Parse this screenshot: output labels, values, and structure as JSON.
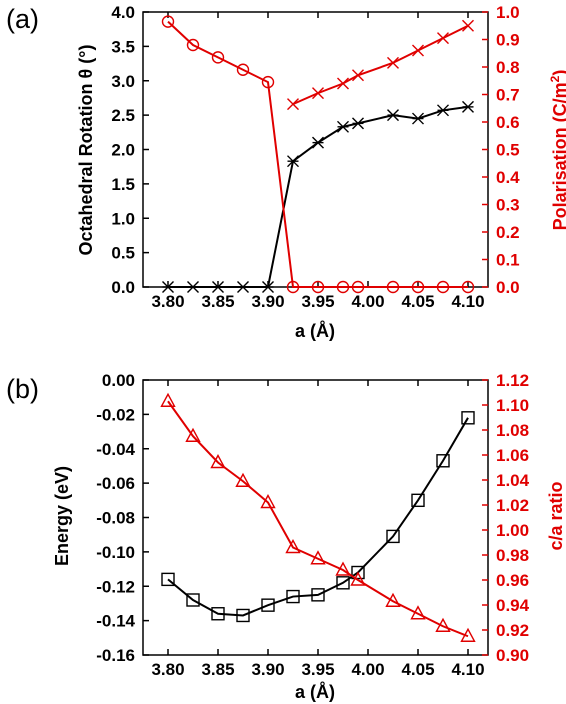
{
  "chart_data": [
    {
      "panel_label": "(a)",
      "type": "line",
      "xlabel": "a (Å)",
      "ylabel_left": "Octahedral Rotation θ (°)",
      "ylabel_right_prefix": "Polarisation (C/m",
      "ylabel_right_sup": "2",
      "ylabel_right_suffix": ")",
      "xlim": [
        3.775,
        4.12
      ],
      "ylim_left": [
        0,
        4.0
      ],
      "ylim_right": [
        0,
        1.0
      ],
      "x_ticks": [
        "3.80",
        "3.85",
        "3.90",
        "3.95",
        "4.00",
        "4.05",
        "4.10"
      ],
      "y_ticks_left": [
        "0.0",
        "0.5",
        "1.0",
        "1.5",
        "2.0",
        "2.5",
        "3.0",
        "3.5",
        "4.0"
      ],
      "y_ticks_right": [
        "0.0",
        "0.1",
        "0.2",
        "0.3",
        "0.4",
        "0.5",
        "0.6",
        "0.7",
        "0.8",
        "0.9",
        "1.0"
      ],
      "series": [
        {
          "axis": "left",
          "color": "#000000",
          "marker": "asterisk",
          "x": [
            3.8,
            3.825,
            3.85,
            3.875,
            3.9,
            3.925,
            3.95,
            3.975,
            3.99,
            4.025,
            4.05,
            4.075,
            4.1
          ],
          "y": [
            0,
            0,
            0,
            0,
            0,
            1.83,
            2.1,
            2.33,
            2.38,
            2.5,
            2.45,
            2.57,
            2.62
          ]
        },
        {
          "axis": "right",
          "color": "#e00000",
          "marker": "x",
          "x": [
            3.925,
            3.95,
            3.975,
            3.99,
            4.025,
            4.05,
            4.075,
            4.1
          ],
          "y": [
            0.665,
            0.705,
            0.74,
            0.77,
            0.815,
            0.86,
            0.905,
            0.95
          ]
        },
        {
          "axis": "right",
          "color": "#e00000",
          "marker": "circle",
          "x": [
            3.8,
            3.825,
            3.85,
            3.875,
            3.9,
            3.925,
            3.95,
            3.975,
            3.99,
            4.025,
            4.05,
            4.075,
            4.1
          ],
          "y": [
            0.965,
            0.88,
            0.835,
            0.79,
            0.745,
            0,
            0,
            0,
            0,
            0,
            0,
            0,
            0
          ]
        }
      ]
    },
    {
      "panel_label": "(b)",
      "type": "line",
      "xlabel": "a (Å)",
      "ylabel_left": "Energy (eV)",
      "ylabel_right": "c/a ratio",
      "xlim": [
        3.775,
        4.12
      ],
      "ylim_left": [
        -0.16,
        0.0
      ],
      "ylim_right": [
        0.9,
        1.12
      ],
      "x_ticks": [
        "3.80",
        "3.85",
        "3.90",
        "3.95",
        "4.00",
        "4.05",
        "4.10"
      ],
      "y_ticks_left": [
        "0.00",
        "-0.02",
        "-0.04",
        "-0.06",
        "-0.08",
        "-0.10",
        "-0.12",
        "-0.14",
        "-0.16"
      ],
      "y_ticks_right": [
        "0.90",
        "0.92",
        "0.94",
        "0.96",
        "0.98",
        "1.00",
        "1.02",
        "1.04",
        "1.06",
        "1.08",
        "1.10",
        "1.12"
      ],
      "series": [
        {
          "axis": "left",
          "color": "#000000",
          "marker": "square",
          "x": [
            3.8,
            3.825,
            3.85,
            3.875,
            3.9,
            3.925,
            3.95,
            3.975,
            3.99,
            4.025,
            4.05,
            4.075,
            4.1
          ],
          "y": [
            -0.116,
            -0.128,
            -0.136,
            -0.137,
            -0.131,
            -0.126,
            -0.125,
            -0.118,
            -0.112,
            -0.091,
            -0.07,
            -0.047,
            -0.022
          ]
        },
        {
          "axis": "right",
          "color": "#e00000",
          "marker": "triangle",
          "x": [
            3.8,
            3.825,
            3.85,
            3.875,
            3.9,
            3.925,
            3.95,
            3.975,
            3.99,
            4.025,
            4.05,
            4.075,
            4.1
          ],
          "y": [
            1.103,
            1.075,
            1.054,
            1.039,
            1.022,
            0.986,
            0.977,
            0.968,
            0.96,
            0.943,
            0.933,
            0.923,
            0.915
          ]
        }
      ]
    }
  ]
}
